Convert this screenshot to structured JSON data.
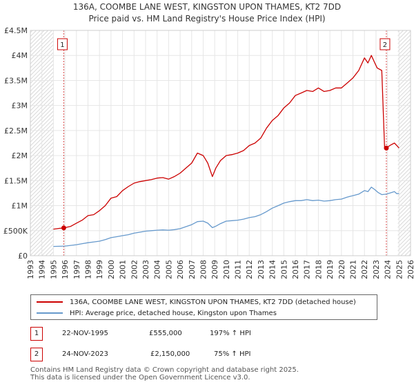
{
  "title_line1": "136A, COOMBE LANE WEST, KINGSTON UPON THAMES, KT2 7DD",
  "title_line2": "Price paid vs. HM Land Registry's House Price Index (HPI)",
  "chart_data": {
    "type": "line",
    "xlim": [
      1993,
      2026
    ],
    "ylim": [
      0,
      4500000
    ],
    "x_ticks": [
      "1993",
      "1994",
      "1995",
      "1996",
      "1997",
      "1998",
      "1999",
      "2000",
      "2001",
      "2002",
      "2003",
      "2004",
      "2005",
      "2006",
      "2007",
      "2008",
      "2009",
      "2010",
      "2011",
      "2012",
      "2013",
      "2014",
      "2015",
      "2016",
      "2017",
      "2018",
      "2019",
      "2020",
      "2021",
      "2022",
      "2023",
      "2024",
      "2025",
      "2026"
    ],
    "y_ticks": [
      {
        "value": 0,
        "label": "£0"
      },
      {
        "value": 500000,
        "label": "£500K"
      },
      {
        "value": 1000000,
        "label": "£1M"
      },
      {
        "value": 1500000,
        "label": "£1.5M"
      },
      {
        "value": 2000000,
        "label": "£2M"
      },
      {
        "value": 2500000,
        "label": "£2.5M"
      },
      {
        "value": 3000000,
        "label": "£3M"
      },
      {
        "value": 3500000,
        "label": "£3.5M"
      },
      {
        "value": 4000000,
        "label": "£4M"
      },
      {
        "value": 4500000,
        "label": "£4.5M"
      }
    ],
    "hatched_ranges": [
      [
        1993,
        1995.0
      ],
      [
        2024.9,
        2026
      ]
    ],
    "series": [
      {
        "name": "136A, COOMBE LANE WEST, KINGSTON UPON THAMES, KT2 7DD (detached house)",
        "color": "#cc0000",
        "x": [
          1995.0,
          1995.5,
          1995.9,
          1996.5,
          1997.0,
          1997.5,
          1998.0,
          1998.5,
          1999.0,
          1999.5,
          2000.0,
          2000.5,
          2001.0,
          2001.5,
          2002.0,
          2002.5,
          2003.0,
          2003.5,
          2004.0,
          2004.5,
          2005.0,
          2005.5,
          2006.0,
          2006.5,
          2007.0,
          2007.5,
          2008.0,
          2008.4,
          2008.8,
          2009.1,
          2009.5,
          2010.0,
          2010.5,
          2011.0,
          2011.5,
          2012.0,
          2012.5,
          2013.0,
          2013.5,
          2014.0,
          2014.5,
          2015.0,
          2015.5,
          2016.0,
          2016.5,
          2017.0,
          2017.5,
          2018.0,
          2018.5,
          2019.0,
          2019.5,
          2020.0,
          2020.5,
          2021.0,
          2021.5,
          2022.0,
          2022.3,
          2022.6,
          2022.9,
          2023.1,
          2023.5,
          2023.75,
          2023.9,
          2024.2,
          2024.6,
          2024.8,
          2025.0
        ],
        "y": [
          530000,
          545000,
          555000,
          585000,
          650000,
          710000,
          800000,
          820000,
          900000,
          1000000,
          1150000,
          1180000,
          1300000,
          1380000,
          1450000,
          1480000,
          1500000,
          1520000,
          1550000,
          1560000,
          1530000,
          1580000,
          1650000,
          1750000,
          1850000,
          2050000,
          2000000,
          1850000,
          1580000,
          1750000,
          1900000,
          2000000,
          2020000,
          2050000,
          2100000,
          2200000,
          2250000,
          2350000,
          2550000,
          2700000,
          2800000,
          2950000,
          3050000,
          3200000,
          3250000,
          3300000,
          3280000,
          3350000,
          3280000,
          3300000,
          3350000,
          3350000,
          3450000,
          3550000,
          3700000,
          3950000,
          3850000,
          4000000,
          3850000,
          3750000,
          3700000,
          2150000,
          2150000,
          2200000,
          2250000,
          2200000,
          2150000
        ]
      },
      {
        "name": "HPI: Average price, detached house, Kingston upon Thames",
        "color": "#6699cc",
        "x": [
          1995.0,
          1995.5,
          1996.0,
          1996.5,
          1997.0,
          1997.5,
          1998.0,
          1998.5,
          1999.0,
          1999.5,
          2000.0,
          2000.5,
          2001.0,
          2001.5,
          2002.0,
          2002.5,
          2003.0,
          2003.5,
          2004.0,
          2004.5,
          2005.0,
          2005.5,
          2006.0,
          2006.5,
          2007.0,
          2007.5,
          2008.0,
          2008.4,
          2008.8,
          2009.1,
          2009.5,
          2010.0,
          2010.5,
          2011.0,
          2011.5,
          2012.0,
          2012.5,
          2013.0,
          2013.5,
          2014.0,
          2014.5,
          2015.0,
          2015.5,
          2016.0,
          2016.5,
          2017.0,
          2017.5,
          2018.0,
          2018.5,
          2019.0,
          2019.5,
          2020.0,
          2020.5,
          2021.0,
          2021.5,
          2022.0,
          2022.3,
          2022.6,
          2022.9,
          2023.2,
          2023.5,
          2023.9,
          2024.2,
          2024.6,
          2024.8,
          2025.0
        ],
        "y": [
          185000,
          188000,
          192000,
          205000,
          220000,
          240000,
          260000,
          275000,
          290000,
          320000,
          360000,
          380000,
          400000,
          420000,
          450000,
          470000,
          490000,
          500000,
          510000,
          515000,
          510000,
          520000,
          540000,
          580000,
          620000,
          680000,
          690000,
          650000,
          560000,
          590000,
          640000,
          690000,
          700000,
          710000,
          730000,
          760000,
          780000,
          820000,
          880000,
          950000,
          1000000,
          1050000,
          1080000,
          1100000,
          1100000,
          1120000,
          1100000,
          1110000,
          1090000,
          1100000,
          1120000,
          1130000,
          1170000,
          1200000,
          1230000,
          1300000,
          1280000,
          1370000,
          1320000,
          1260000,
          1220000,
          1230000,
          1250000,
          1280000,
          1240000,
          1240000
        ]
      }
    ],
    "sales": [
      {
        "id": "1",
        "x": 1995.9,
        "y": 555000
      },
      {
        "id": "2",
        "x": 2023.9,
        "y": 2150000
      }
    ]
  },
  "legend": {
    "items": [
      {
        "label": "136A, COOMBE LANE WEST, KINGSTON UPON THAMES, KT2 7DD (detached house)",
        "color": "#cc0000"
      },
      {
        "label": "HPI: Average price, detached house, Kingston upon Thames",
        "color": "#6699cc"
      }
    ]
  },
  "transactions": [
    {
      "id": "1",
      "date": "22-NOV-1995",
      "price": "£555,000",
      "hpi": "197% ↑ HPI"
    },
    {
      "id": "2",
      "date": "24-NOV-2023",
      "price": "£2,150,000",
      "hpi": "75% ↑ HPI"
    }
  ],
  "footer": {
    "line1": "Contains HM Land Registry data © Crown copyright and database right 2025.",
    "line2": "This data is licensed under the Open Government Licence v3.0."
  }
}
